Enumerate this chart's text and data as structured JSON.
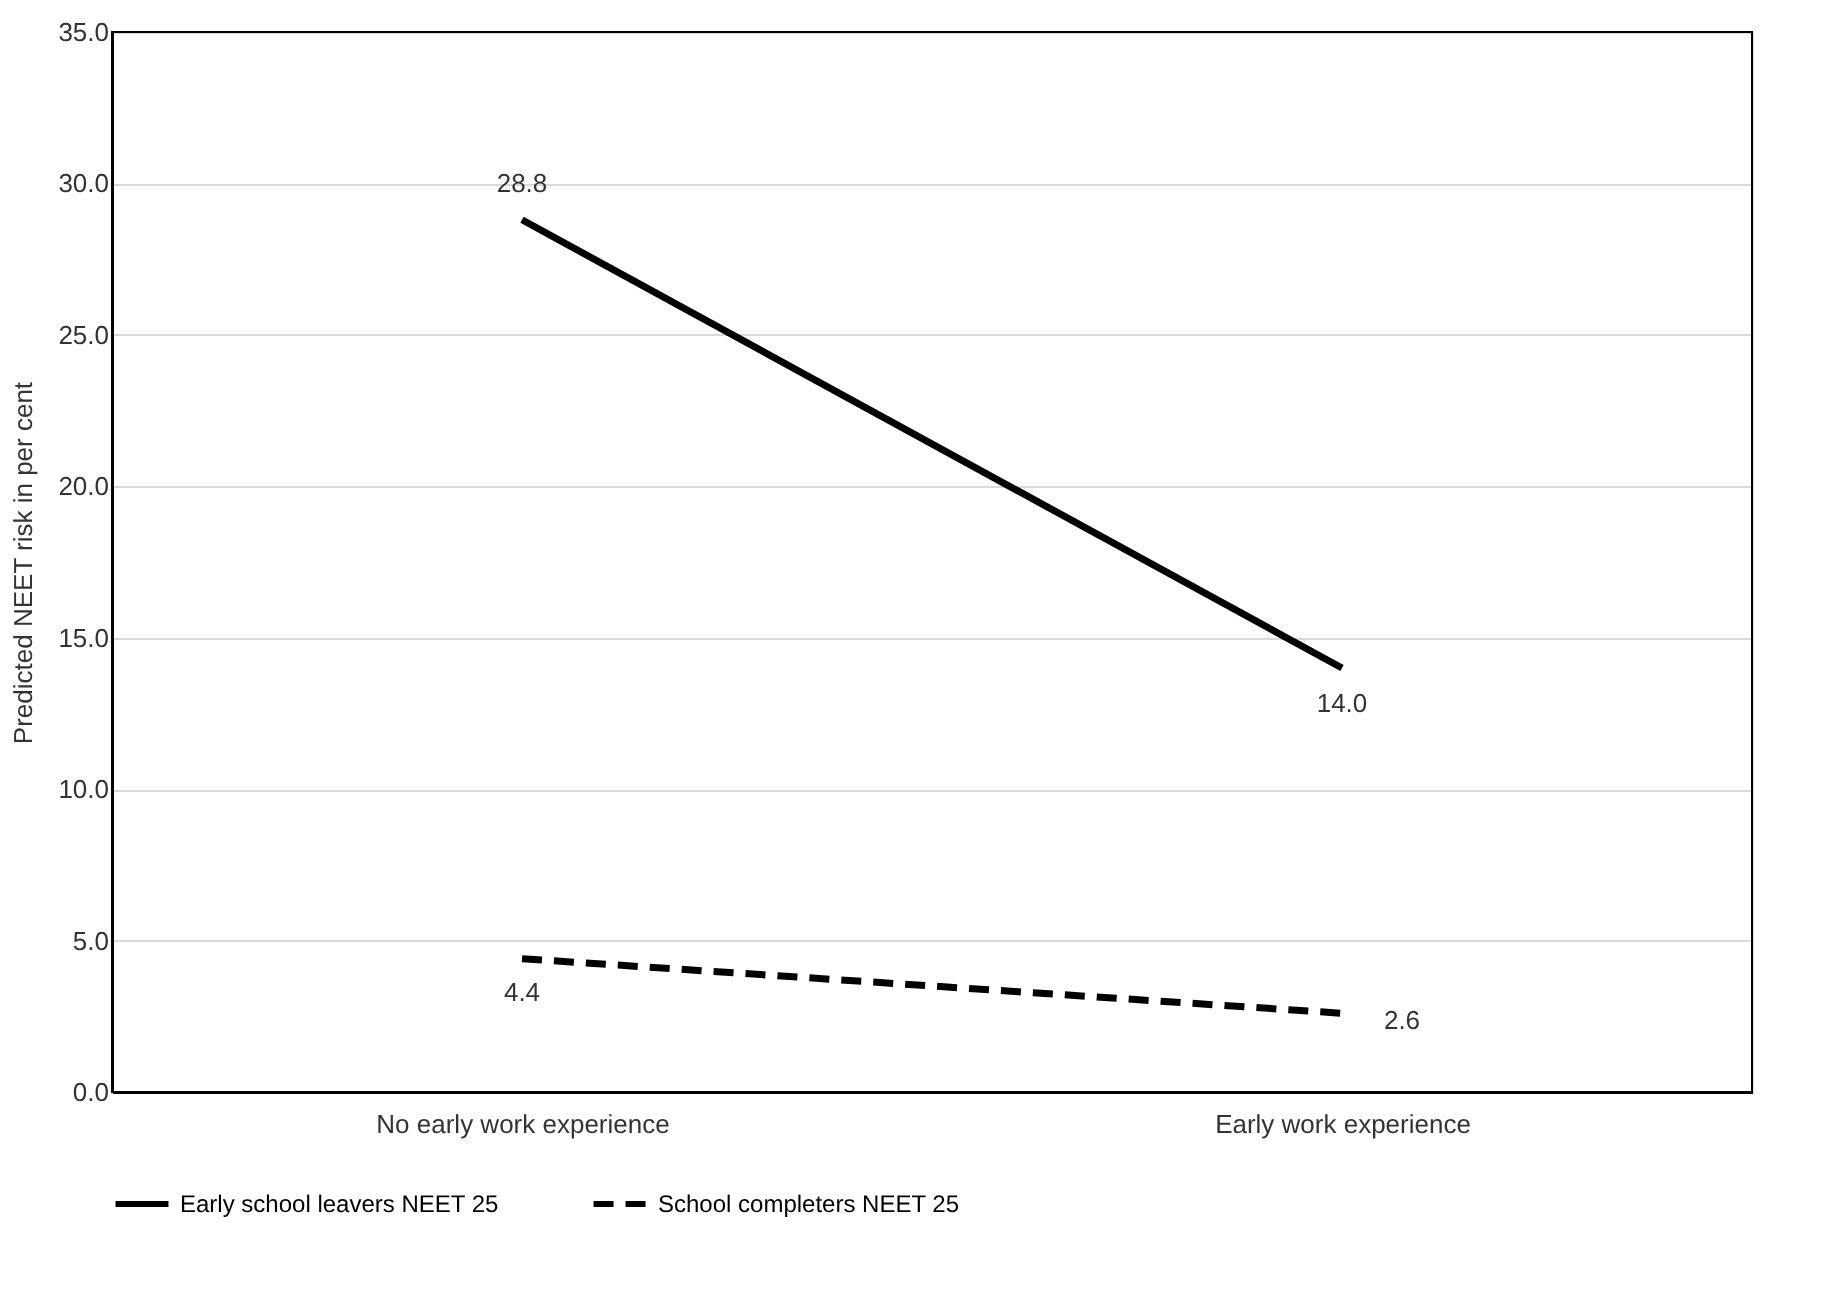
{
  "chart_data": {
    "type": "line",
    "ylabel": "Predicted NEET risk in per cent",
    "categories": [
      "No early work experience",
      "Early work experience"
    ],
    "series": [
      {
        "name": "Early school leavers NEET 25",
        "color": "#000000",
        "line_style": "solid",
        "values": [
          28.8,
          14.0
        ],
        "value_labels": [
          "28.8",
          "14.0"
        ]
      },
      {
        "name": "School completers NEET 25",
        "color": "#000000",
        "line_style": "dashed",
        "values": [
          4.4,
          2.6
        ],
        "value_labels": [
          "4.4",
          "2.6"
        ]
      }
    ],
    "ylim": [
      0,
      35
    ],
    "yticks": [
      {
        "value": 0,
        "label": "0.0"
      },
      {
        "value": 5,
        "label": "5.0"
      },
      {
        "value": 10,
        "label": "10.0"
      },
      {
        "value": 15,
        "label": "15.0"
      },
      {
        "value": 20,
        "label": "20.0"
      },
      {
        "value": 25,
        "label": "25.0"
      },
      {
        "value": 30,
        "label": "30.0"
      },
      {
        "value": 35,
        "label": "35.0"
      }
    ],
    "grid": "y",
    "legend": "bottom",
    "marker": "none"
  }
}
